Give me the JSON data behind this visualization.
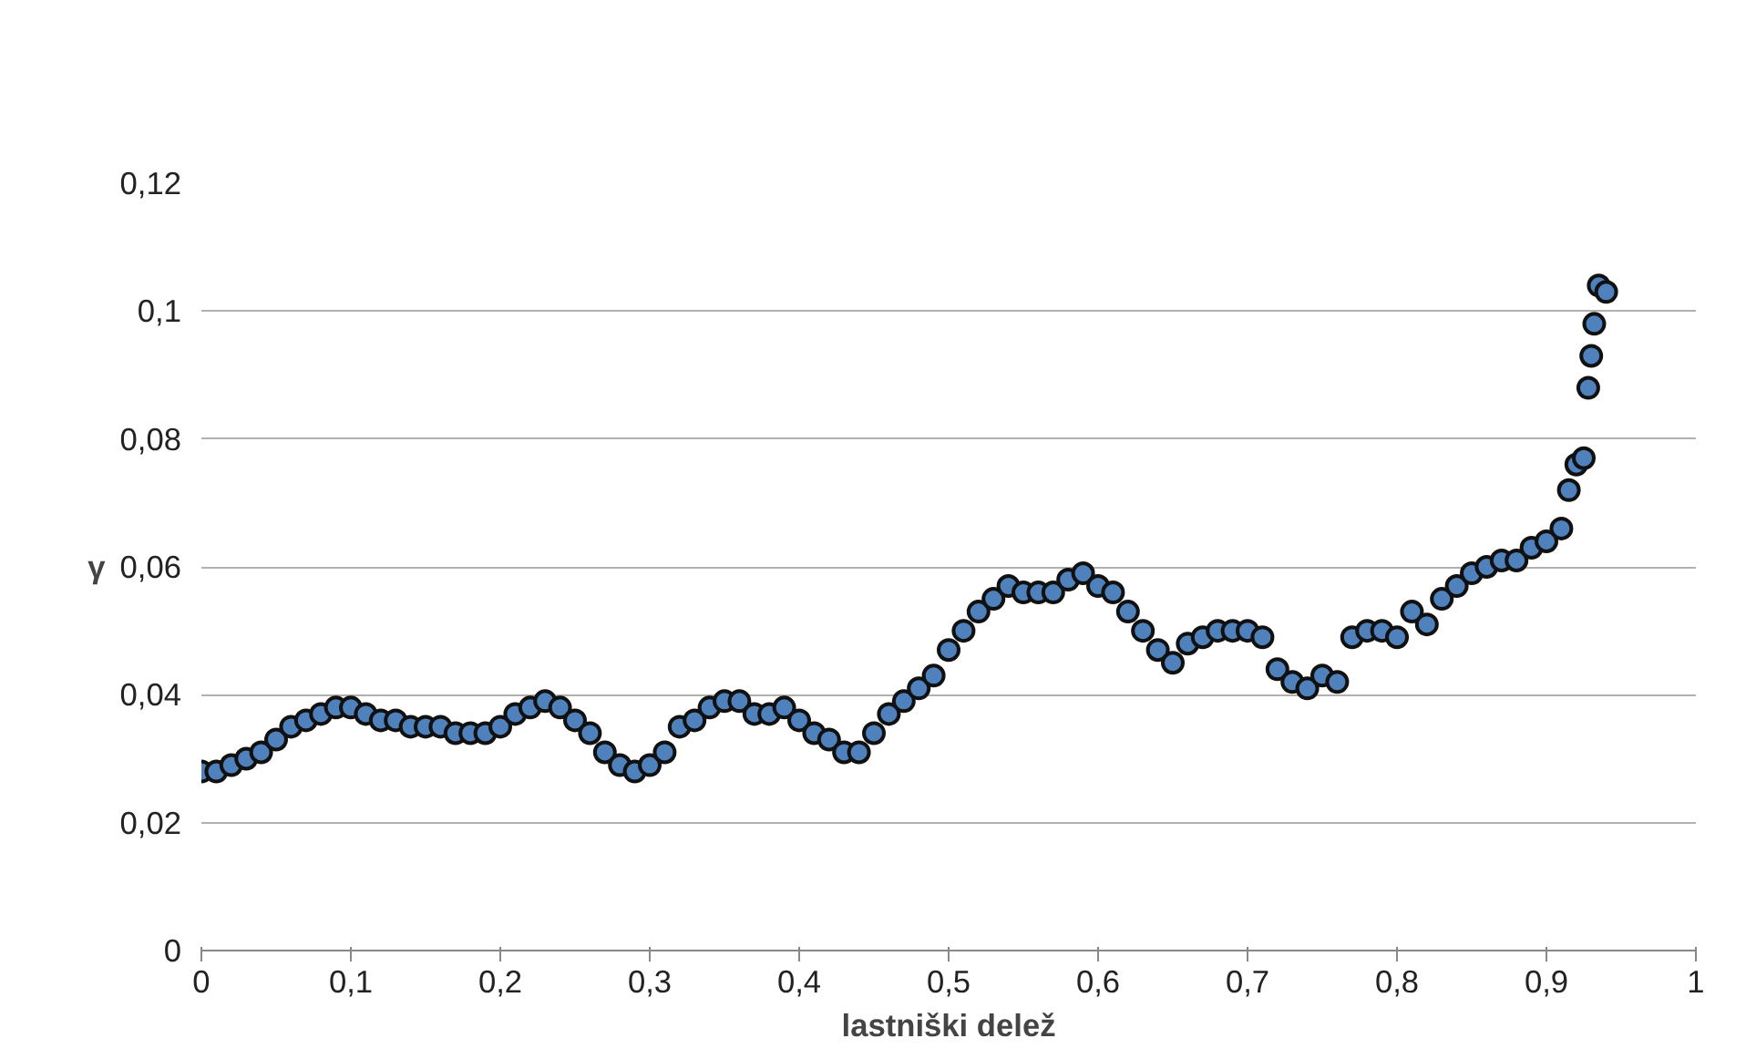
{
  "chart_data": {
    "type": "scatter",
    "xlabel": "lastniški delež",
    "ylabel": "γ",
    "x": [
      0.0,
      0.01,
      0.02,
      0.03,
      0.04,
      0.05,
      0.06,
      0.07,
      0.08,
      0.09,
      0.1,
      0.11,
      0.12,
      0.13,
      0.14,
      0.15,
      0.16,
      0.17,
      0.18,
      0.19,
      0.2,
      0.21,
      0.22,
      0.23,
      0.24,
      0.25,
      0.26,
      0.27,
      0.28,
      0.29,
      0.3,
      0.31,
      0.32,
      0.33,
      0.34,
      0.35,
      0.36,
      0.37,
      0.38,
      0.39,
      0.4,
      0.41,
      0.42,
      0.43,
      0.44,
      0.45,
      0.46,
      0.47,
      0.48,
      0.49,
      0.5,
      0.51,
      0.52,
      0.53,
      0.54,
      0.55,
      0.56,
      0.57,
      0.58,
      0.59,
      0.6,
      0.61,
      0.62,
      0.63,
      0.64,
      0.65,
      0.66,
      0.67,
      0.68,
      0.69,
      0.7,
      0.71,
      0.72,
      0.73,
      0.74,
      0.75,
      0.76,
      0.77,
      0.78,
      0.79,
      0.8,
      0.81,
      0.82,
      0.83,
      0.84,
      0.85,
      0.86,
      0.87,
      0.88,
      0.89,
      0.9,
      0.91,
      0.915,
      0.92,
      0.925,
      0.928,
      0.93,
      0.932,
      0.935,
      0.94
    ],
    "series": [
      {
        "color": "#4f81bd",
        "values": [
          0.028,
          0.028,
          0.029,
          0.03,
          0.031,
          0.033,
          0.035,
          0.036,
          0.037,
          0.038,
          0.038,
          0.037,
          0.036,
          0.036,
          0.035,
          0.035,
          0.035,
          0.034,
          0.034,
          0.034,
          0.035,
          0.037,
          0.038,
          0.039,
          0.038,
          0.036,
          0.034,
          0.031,
          0.029,
          0.028,
          0.029,
          0.031,
          0.035,
          0.036,
          0.038,
          0.039,
          0.039,
          0.037,
          0.037,
          0.038,
          0.036,
          0.034,
          0.033,
          0.031,
          0.031,
          0.034,
          0.037,
          0.039,
          0.041,
          0.043,
          0.047,
          0.05,
          0.053,
          0.055,
          0.057,
          0.056,
          0.056,
          0.056,
          0.058,
          0.059,
          0.057,
          0.056,
          0.053,
          0.05,
          0.047,
          0.045,
          0.048,
          0.049,
          0.05,
          0.05,
          0.05,
          0.049,
          0.044,
          0.042,
          0.041,
          0.043,
          0.042,
          0.049,
          0.05,
          0.05,
          0.049,
          0.053,
          0.051,
          0.055,
          0.057,
          0.059,
          0.06,
          0.061,
          0.061,
          0.063,
          0.064,
          0.066,
          0.072,
          0.076,
          0.077,
          0.088,
          0.093,
          0.098,
          0.104,
          0.103
        ]
      }
    ],
    "xlim": [
      0,
      1
    ],
    "xticks": [
      0,
      {
        "value": 0.1,
        "label": "0,1"
      },
      {
        "value": 0.2,
        "label": "0,2"
      },
      {
        "value": 0.3,
        "label": "0,3"
      },
      {
        "value": 0.4,
        "label": "0,4"
      },
      {
        "value": 0.5,
        "label": "0,5"
      },
      {
        "value": 0.6,
        "label": "0,6"
      },
      {
        "value": 0.7,
        "label": "0,7"
      },
      {
        "value": 0.8,
        "label": "0,8"
      },
      {
        "value": 0.9,
        "label": "0,9"
      },
      1
    ],
    "ylim": [
      0,
      0.12
    ],
    "yticks": [
      0,
      {
        "value": 0.02,
        "label": "0,02"
      },
      {
        "value": 0.04,
        "label": "0,04"
      },
      {
        "value": 0.06,
        "label": "0,06"
      },
      {
        "value": 0.08,
        "label": "0,08"
      },
      {
        "value": 0.1,
        "label": "0,1"
      },
      {
        "value": 0.12,
        "label": "0,12"
      }
    ],
    "grid": "y",
    "marker": "circle"
  }
}
